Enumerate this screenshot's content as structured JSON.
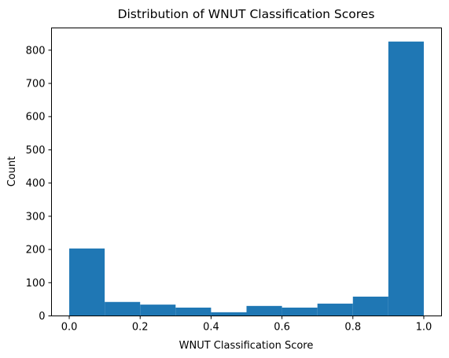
{
  "chart_data": {
    "type": "bar",
    "title": "Distribution of WNUT Classification Scores",
    "xlabel": "WNUT Classification Score",
    "ylabel": "Count",
    "bin_edges": [
      0.0,
      0.1,
      0.2,
      0.3,
      0.4,
      0.5,
      0.6,
      0.7,
      0.8,
      0.9,
      1.0
    ],
    "values": [
      203,
      42,
      34,
      25,
      11,
      30,
      25,
      37,
      58,
      826
    ],
    "xlim": [
      -0.05,
      1.05
    ],
    "ylim": [
      0,
      867
    ],
    "xticks": [
      0.0,
      0.2,
      0.4,
      0.6,
      0.8,
      1.0
    ],
    "xtick_labels": [
      "0.0",
      "0.2",
      "0.4",
      "0.6",
      "0.8",
      "1.0"
    ],
    "yticks": [
      0,
      100,
      200,
      300,
      400,
      500,
      600,
      700,
      800
    ],
    "ytick_labels": [
      "0",
      "100",
      "200",
      "300",
      "400",
      "500",
      "600",
      "700",
      "800"
    ],
    "bar_color": "#1f77b4",
    "grid": false,
    "legend": false
  }
}
